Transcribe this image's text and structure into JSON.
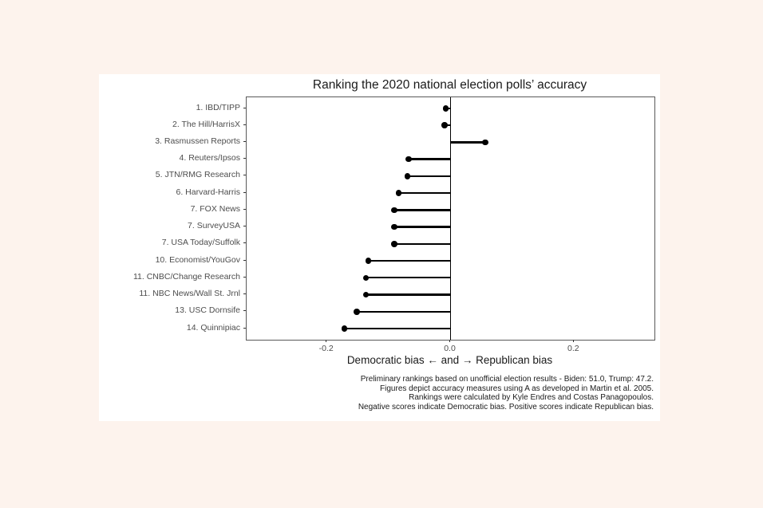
{
  "chart": {
    "title": "Ranking the 2020 national election polls’ accuracy",
    "xlabel": "Democratic bias ← and → Republican bias",
    "caption_lines": [
      "Preliminary rankings based on unofficial election results - Biden: 51.0, Trump: 47.2.",
      "Figures depict accuracy measures using A as developed in Martin et al. 2005.",
      "Rankings were calculated by Kyle Endres and Costas Panagopoulos.",
      "Negative scores indicate Democratic bias. Positive scores indicate Republican bias."
    ]
  },
  "chart_data": {
    "type": "bar",
    "subtype": "lollipop",
    "orientation": "horizontal",
    "title": "Ranking the 2020 national election polls’ accuracy",
    "xlabel": "Democratic bias ← and → Republican bias",
    "ylabel": "",
    "categories": [
      "1. IBD/TIPP",
      "2. The Hill/HarrisX",
      "3. Rasmussen Reports",
      "4. Reuters/Ipsos",
      "5. JTN/RMG Research",
      "6. Harvard-Harris",
      "7. FOX News",
      "7. SurveyUSA",
      "7. USA Today/Suffolk",
      "10. Economist/YouGov",
      "11. CNBC/Change Research",
      "11. NBC News/Wall St. Jrnl",
      "13. USC Dornsife",
      "14. Quinnipiac"
    ],
    "values": [
      -0.008,
      -0.01,
      0.056,
      -0.068,
      -0.07,
      -0.084,
      -0.091,
      -0.091,
      -0.091,
      -0.133,
      -0.137,
      -0.137,
      -0.152,
      -0.172
    ],
    "baseline": 0.0,
    "x_ticks": [
      -0.2,
      0.0,
      0.2
    ],
    "x_tick_labels": [
      "-0.2",
      "0.0",
      "0.2"
    ],
    "xlim": [
      -0.33,
      0.33
    ],
    "grid": false,
    "legend": "none",
    "colors": {
      "point": "#000000",
      "stem": "#000000",
      "baseline_line": "#000000",
      "panel_border": "#595959",
      "tick_label": "#4d4d4d",
      "title_text": "#1a1a1a",
      "page_bg": "#fdf3ed",
      "figure_bg": "#ffffff"
    }
  }
}
